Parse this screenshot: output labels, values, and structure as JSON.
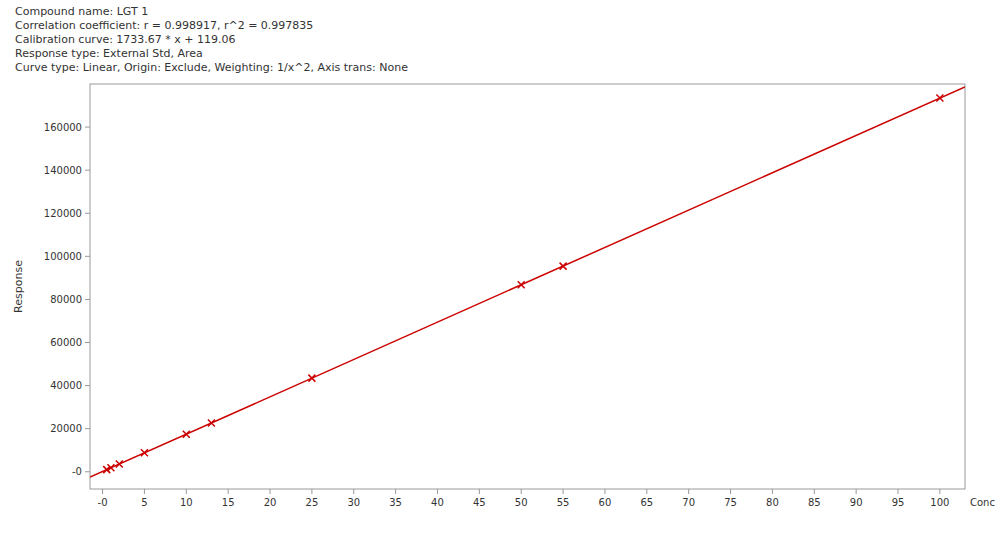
{
  "chart_data": {
    "type": "scatter",
    "annotations": [
      "Compound name: LGT 1",
      "Correlation coefficient: r = 0.998917, r^2 = 0.997835",
      "Calibration curve: 1733.67 * x + 119.06",
      "Response type: External Std, Area",
      "Curve type: Linear, Origin: Exclude, Weighting: 1/x^2, Axis trans: None"
    ],
    "x_label": "Conc",
    "y_label": "Response",
    "series": [
      {
        "type": "line",
        "color": "#cc0000",
        "line_style": "solid",
        "x": [
          -1.5,
          103
        ],
        "values": [
          -2481.445,
          178687.07
        ]
      },
      {
        "type": "scatter",
        "color": "#cc0000",
        "marker": "x",
        "x": [
          0.5,
          1.0,
          2.0,
          5.0,
          10.0,
          13.0,
          25.0,
          50.0,
          55.0,
          100.0
        ],
        "values": [
          985.895,
          1852.73,
          3586.4,
          8787.41,
          17455.76,
          22656.77,
          43460.81,
          86802.56,
          95470.91,
          173486.06
        ]
      }
    ],
    "xlim": [
      -1.5,
      103
    ],
    "ylim": [
      -8000,
      180000
    ],
    "xticks": [
      {
        "value": 0,
        "label": "-0"
      },
      5,
      10,
      15,
      20,
      25,
      30,
      35,
      40,
      45,
      50,
      55,
      60,
      65,
      70,
      75,
      80,
      85,
      90,
      95,
      100
    ],
    "yticks": [
      {
        "value": 0,
        "label": "-0"
      },
      20000,
      40000,
      60000,
      80000,
      100000,
      120000,
      140000,
      160000
    ],
    "grid": false
  }
}
